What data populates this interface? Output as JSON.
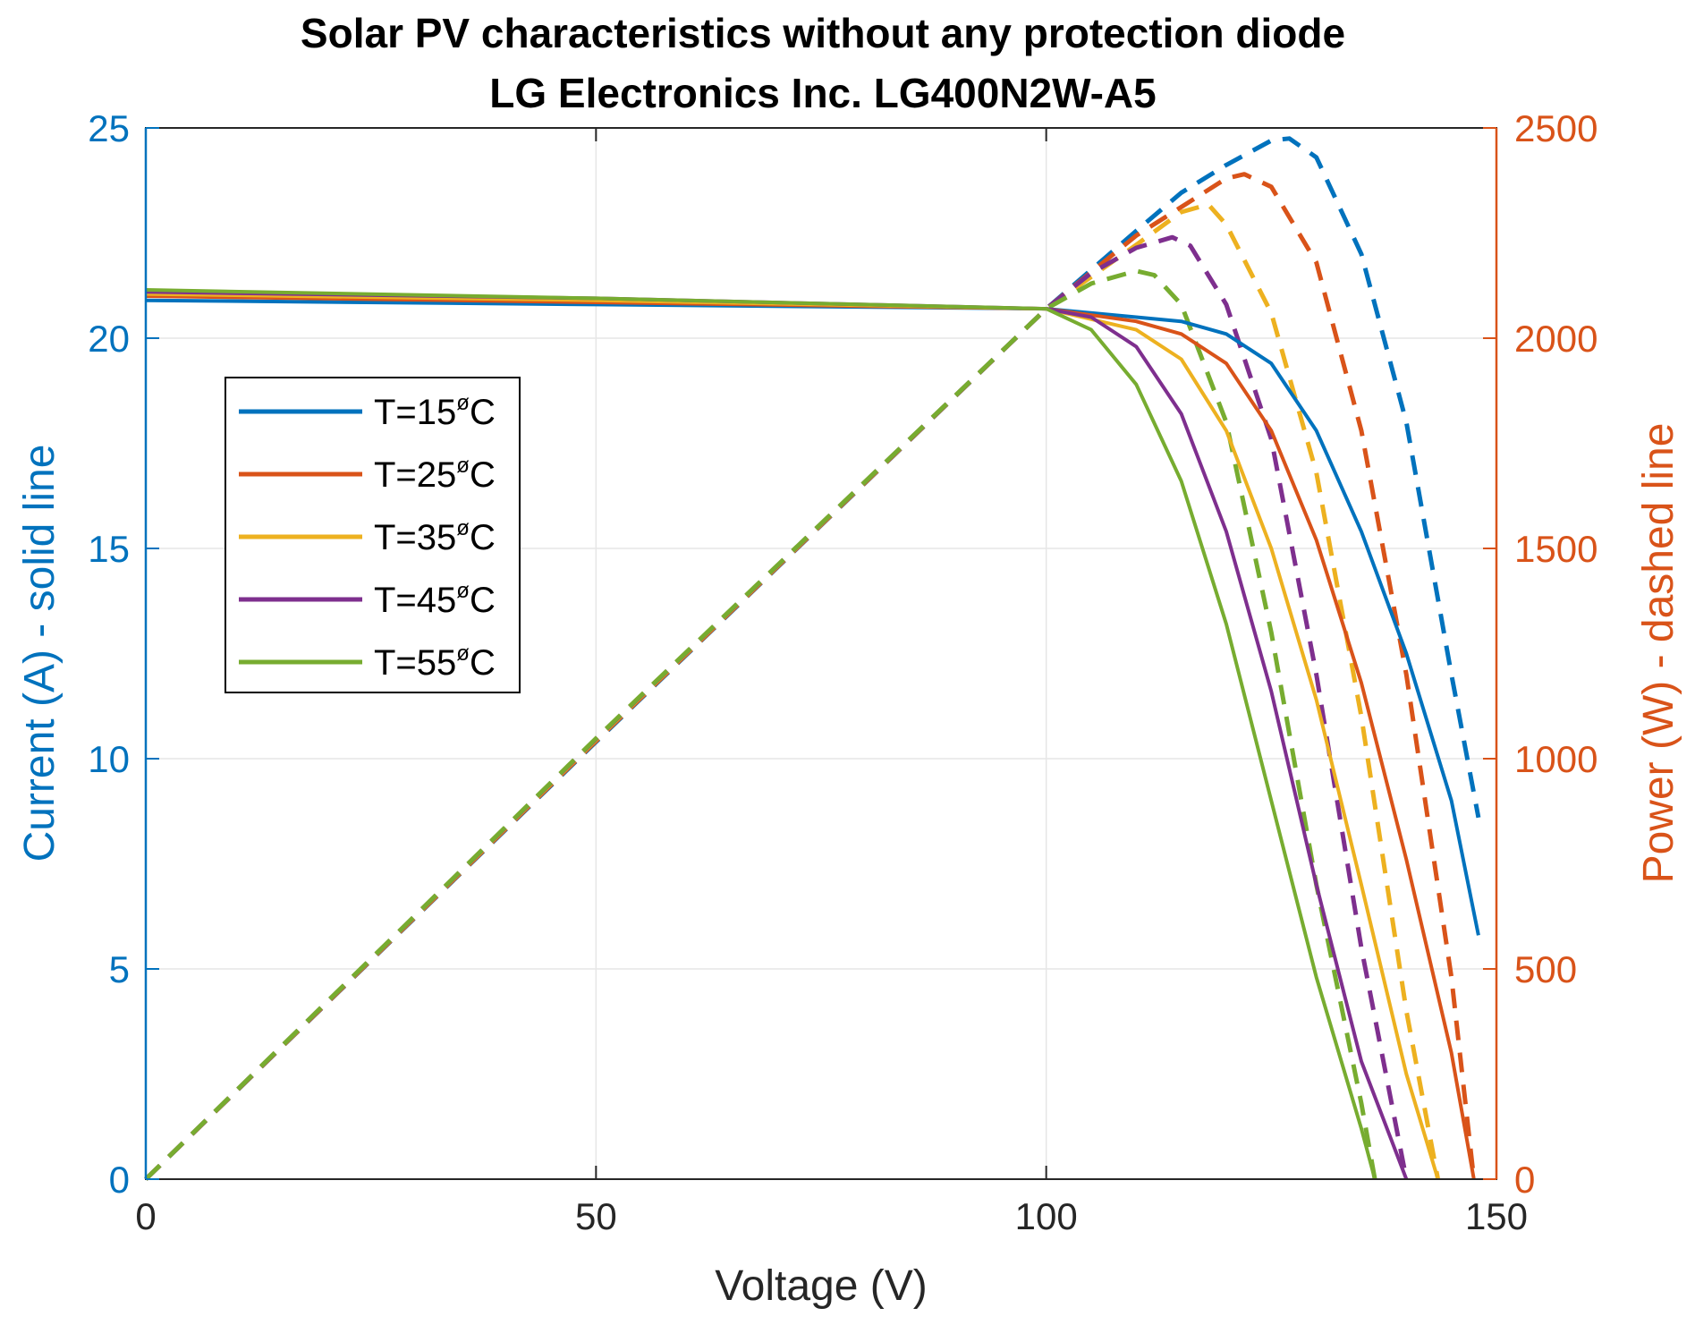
{
  "chart_data": {
    "type": "line",
    "title": [
      "Solar PV characteristics without any protection diode",
      "LG Electronics Inc. LG400N2W-A5"
    ],
    "xlabel": "Voltage (V)",
    "ylabel_left": "Current (A) - solid line",
    "ylabel_right": "Power (W) - dashed line",
    "xlim": [
      0,
      150
    ],
    "ylim_left": [
      0,
      25
    ],
    "ylim_right": [
      0,
      2500
    ],
    "xticks": [
      "0",
      "50",
      "100",
      "150"
    ],
    "yticks_left": [
      "0",
      "5",
      "10",
      "15",
      "20",
      "25"
    ],
    "yticks_right": [
      "0",
      "500",
      "1000",
      "1500",
      "2000",
      "2500"
    ],
    "grid": true,
    "legend_position": "upper-left",
    "series": [
      {
        "name": "T=15",
        "color": "#0072BD",
        "current": [
          [
            0,
            20.9
          ],
          [
            50,
            20.8
          ],
          [
            100,
            20.7
          ],
          [
            110,
            20.5
          ],
          [
            115,
            20.4
          ],
          [
            120,
            20.1
          ],
          [
            125,
            19.4
          ],
          [
            130,
            17.8
          ],
          [
            135,
            15.4
          ],
          [
            140,
            12.5
          ],
          [
            145,
            9.0
          ],
          [
            148,
            5.8
          ]
        ],
        "power": [
          [
            0,
            0
          ],
          [
            50,
            1040
          ],
          [
            100,
            2070
          ],
          [
            110,
            2255
          ],
          [
            115,
            2346
          ],
          [
            120,
            2412
          ],
          [
            125,
            2470
          ],
          [
            127,
            2475
          ],
          [
            130,
            2430
          ],
          [
            135,
            2200
          ],
          [
            140,
            1800
          ],
          [
            145,
            1200
          ],
          [
            148,
            860
          ]
        ]
      },
      {
        "name": "T=25",
        "color": "#D95319",
        "current": [
          [
            0,
            21.0
          ],
          [
            50,
            20.85
          ],
          [
            100,
            20.7
          ],
          [
            110,
            20.4
          ],
          [
            115,
            20.1
          ],
          [
            120,
            19.4
          ],
          [
            125,
            17.8
          ],
          [
            130,
            15.2
          ],
          [
            135,
            11.8
          ],
          [
            140,
            7.6
          ],
          [
            145,
            3.0
          ],
          [
            147.5,
            0
          ]
        ],
        "power": [
          [
            0,
            0
          ],
          [
            50,
            1042
          ],
          [
            100,
            2070
          ],
          [
            110,
            2244
          ],
          [
            115,
            2312
          ],
          [
            120,
            2380
          ],
          [
            122,
            2390
          ],
          [
            125,
            2360
          ],
          [
            130,
            2180
          ],
          [
            135,
            1780
          ],
          [
            140,
            1200
          ],
          [
            145,
            480
          ],
          [
            147.5,
            0
          ]
        ]
      },
      {
        "name": "T=35",
        "color": "#EDB120",
        "current": [
          [
            0,
            21.05
          ],
          [
            50,
            20.9
          ],
          [
            100,
            20.7
          ],
          [
            110,
            20.2
          ],
          [
            115,
            19.5
          ],
          [
            120,
            17.8
          ],
          [
            125,
            15.0
          ],
          [
            130,
            11.4
          ],
          [
            135,
            7.0
          ],
          [
            140,
            2.5
          ],
          [
            143.5,
            0
          ]
        ],
        "power": [
          [
            0,
            0
          ],
          [
            50,
            1045
          ],
          [
            100,
            2070
          ],
          [
            110,
            2222
          ],
          [
            115,
            2300
          ],
          [
            118,
            2318
          ],
          [
            120,
            2270
          ],
          [
            125,
            2060
          ],
          [
            130,
            1680
          ],
          [
            135,
            1100
          ],
          [
            140,
            400
          ],
          [
            143.5,
            0
          ]
        ]
      },
      {
        "name": "T=45",
        "color": "#7E2F8E",
        "current": [
          [
            0,
            21.1
          ],
          [
            50,
            20.95
          ],
          [
            100,
            20.7
          ],
          [
            105,
            20.5
          ],
          [
            110,
            19.8
          ],
          [
            115,
            18.2
          ],
          [
            120,
            15.4
          ],
          [
            125,
            11.6
          ],
          [
            130,
            7.0
          ],
          [
            135,
            2.8
          ],
          [
            140,
            0
          ]
        ],
        "power": [
          [
            0,
            0
          ],
          [
            50,
            1047
          ],
          [
            100,
            2070
          ],
          [
            105,
            2155
          ],
          [
            110,
            2215
          ],
          [
            114,
            2240
          ],
          [
            116,
            2220
          ],
          [
            120,
            2080
          ],
          [
            125,
            1760
          ],
          [
            130,
            1200
          ],
          [
            135,
            550
          ],
          [
            140,
            0
          ]
        ]
      },
      {
        "name": "T=55",
        "color": "#77AC30",
        "current": [
          [
            0,
            21.15
          ],
          [
            50,
            20.95
          ],
          [
            100,
            20.7
          ],
          [
            105,
            20.2
          ],
          [
            110,
            18.9
          ],
          [
            115,
            16.6
          ],
          [
            120,
            13.2
          ],
          [
            125,
            9.0
          ],
          [
            130,
            4.8
          ],
          [
            135,
            1.2
          ],
          [
            136.5,
            0
          ]
        ],
        "power": [
          [
            0,
            0
          ],
          [
            50,
            1048
          ],
          [
            100,
            2070
          ],
          [
            105,
            2130
          ],
          [
            110,
            2160
          ],
          [
            112,
            2150
          ],
          [
            115,
            2080
          ],
          [
            120,
            1800
          ],
          [
            125,
            1300
          ],
          [
            130,
            700
          ],
          [
            135,
            180
          ],
          [
            136.5,
            0
          ]
        ]
      }
    ]
  },
  "legend": {
    "entries": [
      {
        "prefix": "T=15",
        "degree": "ø",
        "unit": "C"
      },
      {
        "prefix": "T=25",
        "degree": "ø",
        "unit": "C"
      },
      {
        "prefix": "T=35",
        "degree": "ø",
        "unit": "C"
      },
      {
        "prefix": "T=45",
        "degree": "ø",
        "unit": "C"
      },
      {
        "prefix": "T=55",
        "degree": "ø",
        "unit": "C"
      }
    ]
  },
  "colors": {
    "left_axis": "#0072BD",
    "right_axis": "#D95319",
    "grid": "#E6E6E6",
    "axes": "#262626"
  }
}
